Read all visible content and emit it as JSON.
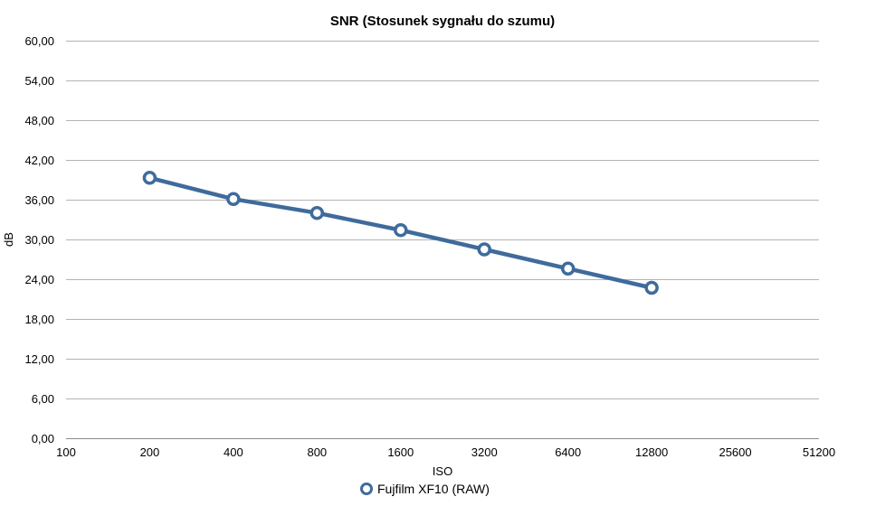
{
  "chart_data": {
    "type": "line",
    "title": "SNR (Stosunek sygnału do szumu)",
    "xlabel": "ISO",
    "ylabel": "dB",
    "categories": [
      "100",
      "200",
      "400",
      "800",
      "1600",
      "3200",
      "6400",
      "12800",
      "25600",
      "51200"
    ],
    "ylim": [
      0,
      60
    ],
    "yticks": [
      "0,00",
      "6,00",
      "12,00",
      "18,00",
      "24,00",
      "30,00",
      "36,00",
      "42,00",
      "48,00",
      "54,00",
      "60,00"
    ],
    "grid": true,
    "legend_position": "bottom",
    "series": [
      {
        "name": "Fujfilm XF10 (RAW)",
        "color": "#3f6b9c",
        "x": [
          "200",
          "400",
          "800",
          "1600",
          "3200",
          "6400",
          "12800"
        ],
        "values": [
          39.3,
          36.1,
          34.0,
          31.4,
          28.5,
          25.6,
          22.7
        ]
      }
    ]
  }
}
